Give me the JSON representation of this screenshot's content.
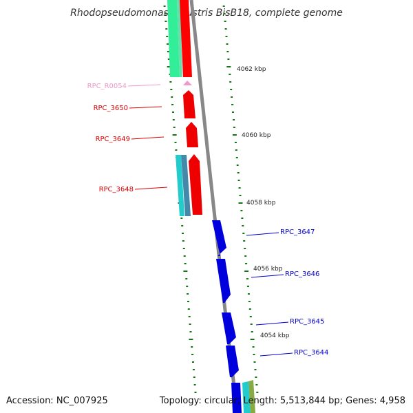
{
  "title": "Rhodopseudomonas palustris BisB18, complete genome",
  "footer": {
    "accession": "Accession: NC_007925",
    "topology": "Topology: circular; Length: 5,513,844 bp; Genes: 4,958"
  },
  "colors": {
    "reverse_strand": "#ff0000",
    "forward_strand": "#0000ee",
    "rna": "#ee99cc",
    "backbone": "#888888",
    "tick": "#117711"
  },
  "genes": [
    {
      "label": "RPC_R0054",
      "color": "#ee99cc"
    },
    {
      "label": "RPC_3650",
      "color": "#dd0000"
    },
    {
      "label": "RPC_3649",
      "color": "#dd0000"
    },
    {
      "label": "RPC_3648",
      "color": "#dd0000"
    },
    {
      "label": "RPC_3647",
      "color": "#0000cc"
    },
    {
      "label": "RPC_3646",
      "color": "#0000cc"
    },
    {
      "label": "RPC_3645",
      "color": "#0000cc"
    },
    {
      "label": "RPC_3644",
      "color": "#0000cc"
    }
  ],
  "kbp_labels": [
    "4062 kbp",
    "4060 kbp",
    "4058 kbp",
    "4056 kbp",
    "4054 kbp"
  ]
}
